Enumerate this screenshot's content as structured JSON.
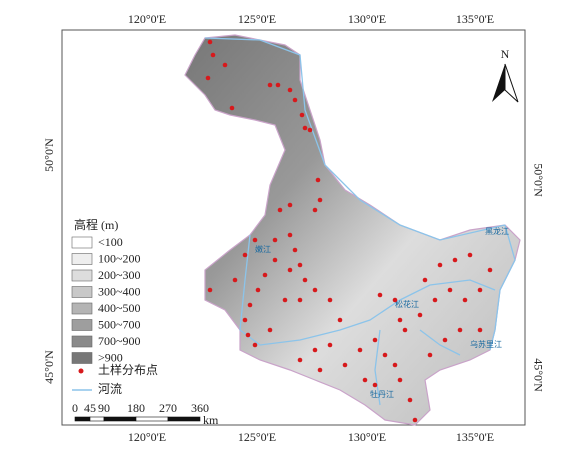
{
  "map": {
    "lon_labels": [
      "120°0'E",
      "125°0'E",
      "130°0'E",
      "135°0'E"
    ],
    "lat_labels": [
      "50°0'N",
      "45°0'N"
    ],
    "north": "N",
    "legend": {
      "title": "高程 (m)",
      "elevation_classes": [
        "<100",
        "100~200",
        "200~300",
        "300~400",
        "400~500",
        "500~700",
        "700~900",
        ">900"
      ],
      "points": "土样分布点",
      "river": "河流"
    },
    "scale": {
      "labels": [
        "0",
        "45",
        "90",
        "180",
        "270",
        "360"
      ],
      "unit": "km"
    },
    "rivers": [
      "嫩江",
      "松花江",
      "黑龙江",
      "乌苏里江",
      "牡丹江"
    ]
  }
}
